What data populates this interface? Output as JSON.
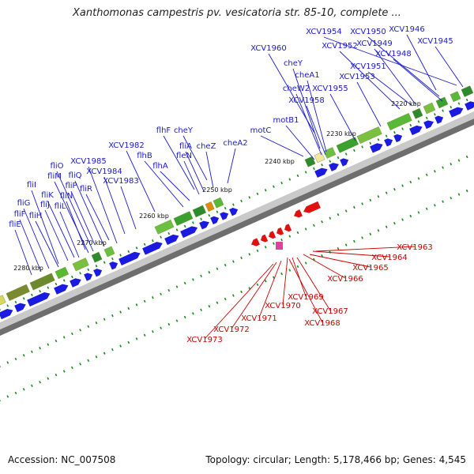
{
  "title": "Xanthomonas campestris pv. vesicatoria str. 85-10, complete ...",
  "footer": {
    "accession": "Accession: NC_007508",
    "summary": "Topology: circular; Length: 5,178,466 bp; Genes: 4,545"
  },
  "colors": {
    "forward_gene": "#1a1ae0",
    "reverse_gene": "#e01010",
    "forward_label": "#1a1acc",
    "reverse_label": "#cc0000",
    "tick": "#1a8a1a",
    "backbone": "#888888"
  },
  "kbp_labels": [
    "2220 kbp",
    "2230 kbp",
    "2240 kbp",
    "2250 kbp",
    "2260 kbp",
    "2270 kbp",
    "2280 kbp"
  ],
  "forward_labels": [
    "XCV1954",
    "XCV1950",
    "XCV1946",
    "XCV1952",
    "XCV1949",
    "XCV1945",
    "XCV1960",
    "XCV1948",
    "cheY",
    "XCV1951",
    "cheA1",
    "XCV1953",
    "cheW2",
    "XCV1955",
    "XCV1958",
    "motB1",
    "motC",
    "flhF",
    "cheY",
    "flhB",
    "flhA",
    "cheZ",
    "cheA2",
    "fliA",
    "fleN",
    "XCV1982",
    "XCV1985",
    "fliO",
    "fliM",
    "fliP",
    "fliQ",
    "fliR",
    "XCV1984",
    "XCV1983",
    "fliI",
    "fliK",
    "fliN",
    "fliG",
    "fliJ",
    "fliL",
    "fliF",
    "fliH",
    "fliE"
  ],
  "reverse_labels": [
    "XCV1963",
    "XCV1964",
    "XCV1965",
    "XCV1966",
    "XCV1969",
    "XCV1967",
    "XCV1970",
    "XCV1968",
    "XCV1971",
    "XCV1972",
    "XCV1973"
  ]
}
